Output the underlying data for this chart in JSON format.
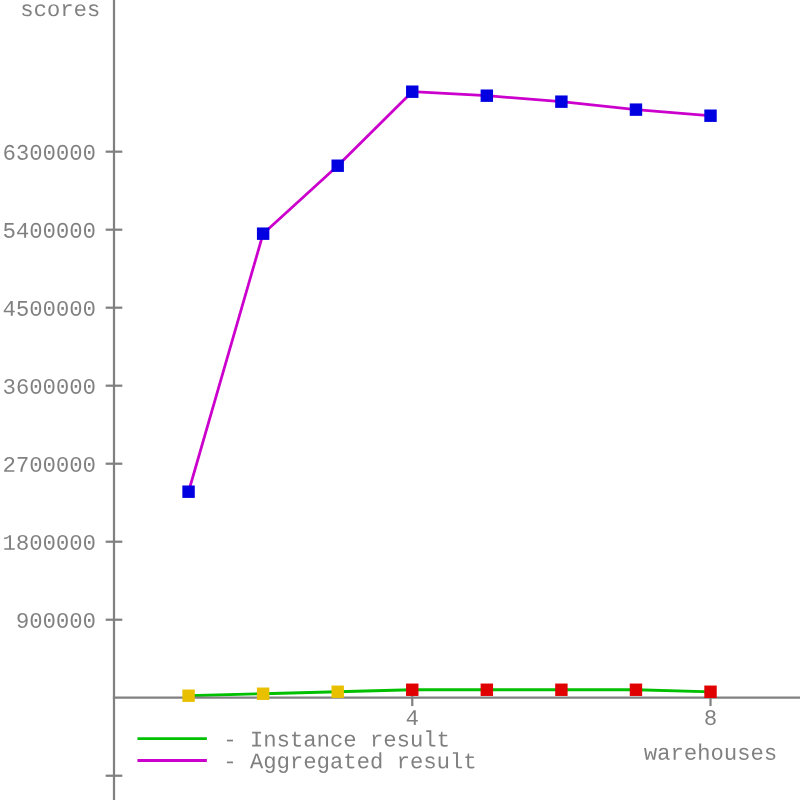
{
  "chart_data": {
    "type": "line",
    "xlabel": "warehouses",
    "ylabel": "scores",
    "x": [
      1,
      2,
      3,
      4,
      5,
      6,
      7,
      8
    ],
    "series": [
      {
        "name": "- Instance result",
        "color": "#00c000",
        "colors": [
          "#e8c000",
          "#e8c000",
          "#e8c000",
          "#e00000",
          "#e00000",
          "#e00000",
          "#e00000",
          "#e00000"
        ],
        "values": [
          23000,
          46000,
          69000,
          92000,
          92000,
          92000,
          92000,
          69000
        ]
      },
      {
        "name": "- Aggregated result",
        "color": "#cc00cc",
        "colors": [
          "#0000e0",
          "#0000e0",
          "#0000e0",
          "#0000e0",
          "#0000e0",
          "#0000e0",
          "#0000e0",
          "#0000e0"
        ],
        "values": [
          2377000,
          5354000,
          6138000,
          6992000,
          6946000,
          6877000,
          6785000,
          6715000
        ]
      }
    ],
    "xlim": [
      0,
      9.2
    ],
    "xticks": [
      4,
      8
    ],
    "ylim": [
      -1180000,
      8050000
    ],
    "yticks": [
      {
        "value": -900000,
        "label": null
      },
      900000,
      1800000,
      2700000,
      3600000,
      4500000,
      5400000,
      6300000
    ],
    "marker": "square",
    "line_style": "solid",
    "grid": false,
    "legend": "bottom left"
  }
}
